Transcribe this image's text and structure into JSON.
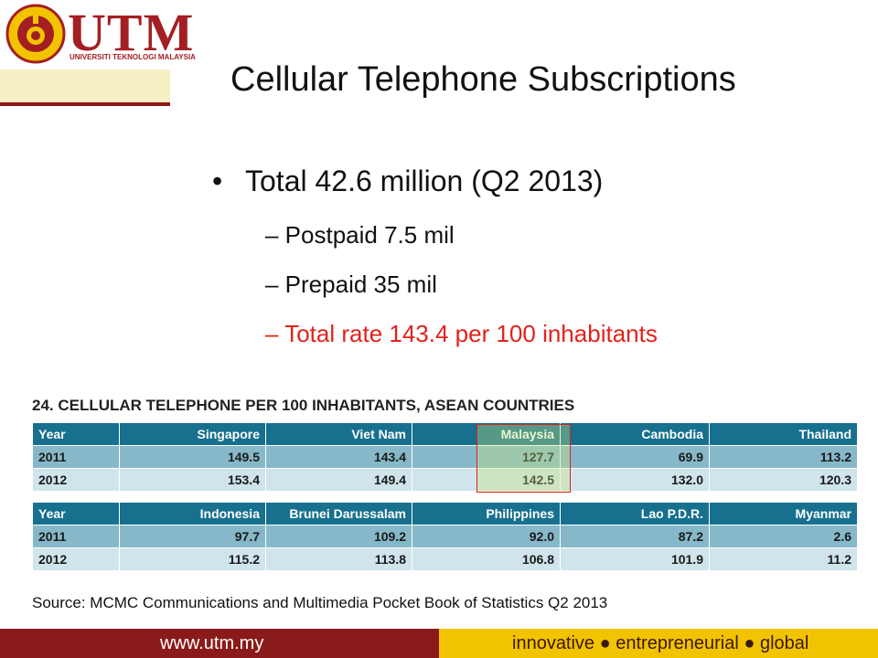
{
  "logo": {
    "name": "UTM",
    "subtitle": "UNIVERSITI TEKNOLOGI MALAYSIA"
  },
  "title": "Cellular Telephone Subscriptions",
  "bullets": [
    "Total 42.6 million (Q2 2013)"
  ],
  "sub_bullets": [
    "– Postpaid 7.5 mil",
    "– Prepaid 35 mil",
    "– Total rate 143.4 per 100 inhabitants"
  ],
  "table_title": "24.  CELLULAR TELEPHONE PER 100 INHABITANTS, ASEAN COUNTRIES",
  "tables": [
    {
      "header": [
        "Year",
        "Singapore",
        "Viet Nam",
        "Malaysia",
        "Cambodia",
        "Thailand"
      ],
      "rows": [
        [
          "2011",
          "149.5",
          "143.4",
          "127.7",
          "69.9",
          "113.2"
        ],
        [
          "2012",
          "153.4",
          "149.4",
          "142.5",
          "132.0",
          "120.3"
        ]
      ]
    },
    {
      "header": [
        "Year",
        "Indonesia",
        "Brunei Darussalam",
        "Philippines",
        "Lao P.D.R.",
        "Myanmar"
      ],
      "rows": [
        [
          "2011",
          "97.7",
          "109.2",
          "92.0",
          "87.2",
          "2.6"
        ],
        [
          "2012",
          "115.2",
          "113.8",
          "106.8",
          "101.9",
          "11.2"
        ]
      ]
    }
  ],
  "source": "Source: MCMC Communications and Multimedia Pocket Book of Statistics Q2 2013",
  "footer": {
    "url": "www.utm.my",
    "motto": "innovative ● entrepreneurial ● global"
  }
}
